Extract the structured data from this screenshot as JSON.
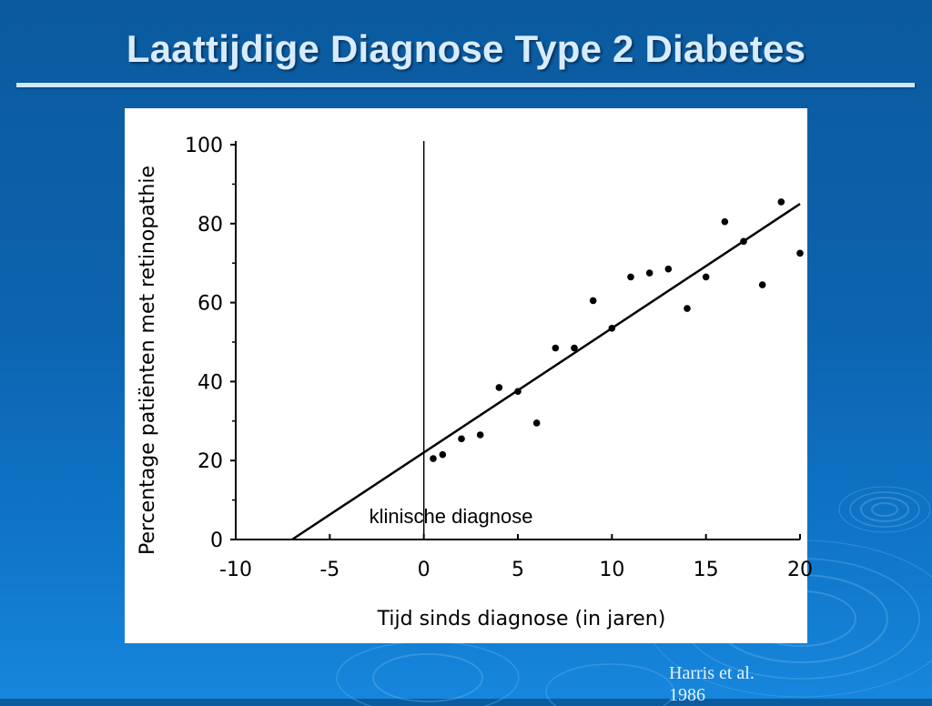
{
  "slide": {
    "title": "Laattijdige Diagnose Type 2 Diabetes",
    "source_line1": "Harris et al.",
    "source_line2": "1986"
  },
  "colors": {
    "background": "#0c63ae",
    "title_text": "#d8ecff",
    "title_rule": "#cfe7ff",
    "chart_background": "#ffffff",
    "chart_ink": "#000000"
  },
  "chart_data": {
    "type": "scatter",
    "title": "",
    "xlabel": "Tijd sinds diagnose (in jaren)",
    "ylabel": "Percentage patiënten met retinopathie",
    "xlim": [
      -10,
      20
    ],
    "ylim": [
      0,
      100
    ],
    "x_ticks": [
      -10,
      -5,
      0,
      5,
      10,
      15,
      20
    ],
    "y_ticks": [
      0,
      20,
      40,
      60,
      80,
      100
    ],
    "grid": false,
    "legend": "none",
    "points": [
      {
        "x": 0.5,
        "y": 20.5
      },
      {
        "x": 1,
        "y": 21.5
      },
      {
        "x": 2,
        "y": 25.5
      },
      {
        "x": 3,
        "y": 26.5
      },
      {
        "x": 4,
        "y": 38.5
      },
      {
        "x": 5,
        "y": 37.5
      },
      {
        "x": 6,
        "y": 29.5
      },
      {
        "x": 7,
        "y": 48.5
      },
      {
        "x": 8,
        "y": 48.5
      },
      {
        "x": 9,
        "y": 60.5
      },
      {
        "x": 10,
        "y": 53.5
      },
      {
        "x": 11,
        "y": 66.5
      },
      {
        "x": 12,
        "y": 67.5
      },
      {
        "x": 13,
        "y": 68.5
      },
      {
        "x": 14,
        "y": 58.5
      },
      {
        "x": 15,
        "y": 66.5
      },
      {
        "x": 16,
        "y": 80.5
      },
      {
        "x": 17,
        "y": 75.5
      },
      {
        "x": 18,
        "y": 64.5
      },
      {
        "x": 19,
        "y": 85.5
      },
      {
        "x": 20,
        "y": 72.5
      }
    ],
    "trend_line": {
      "from": {
        "x": -7,
        "y": 0
      },
      "to": {
        "x": 20,
        "y": 85
      }
    },
    "reference_line": {
      "x": 0,
      "label": "klinische diagnose"
    }
  }
}
